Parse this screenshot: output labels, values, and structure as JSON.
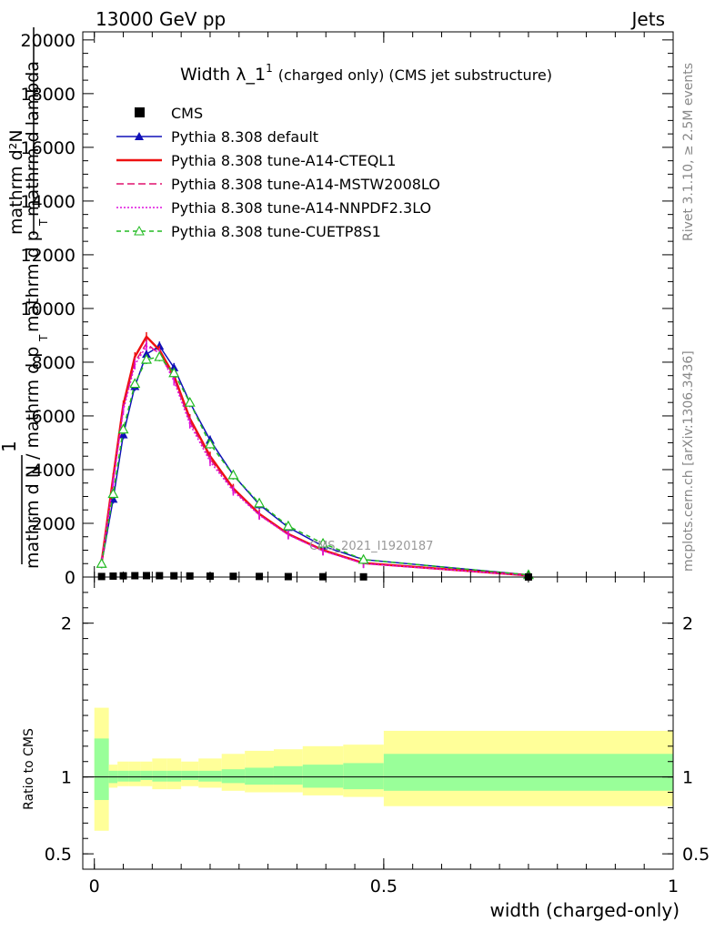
{
  "header": {
    "left": "13000 GeV pp",
    "right": "Jets"
  },
  "side_labels": {
    "rivet": "Rivet 3.1.10, ≥ 2.5M events",
    "mcplots": "mcplots.cern.ch [arXiv:1306.3436]"
  },
  "watermark": "CMS_2021_I1920187",
  "chart_data": {
    "type": "line",
    "title_main": "Width λ_1",
    "title_sup": "1",
    "title_rest": "(charged only) (CMS jet substructure)",
    "xlabel": "width (charged-only)",
    "ylabel_parts": [
      "mathrm d²N",
      "1",
      "mathrm d N / mathrm d p",
      "T",
      "mathrm d p",
      "T",
      "mathrm d lambda"
    ],
    "ratio_ylabel": "Ratio to CMS",
    "xlim": [
      -0.02,
      1.0
    ],
    "ylim": [
      0,
      20300
    ],
    "ratio_ylim": [
      0.4,
      2.3
    ],
    "x_ticks": [
      0,
      0.5,
      1
    ],
    "x_tick_labels": [
      "0",
      "0.5",
      "1"
    ],
    "y_ticks": [
      0,
      2000,
      4000,
      6000,
      8000,
      10000,
      12000,
      14000,
      16000,
      18000,
      20000
    ],
    "y_tick_labels": [
      "0",
      "2000",
      "4000",
      "6000",
      "8000",
      "10000",
      "12000",
      "14000",
      "16000",
      "18000",
      "20000"
    ],
    "ratio_ticks": [
      0.5,
      1,
      2
    ],
    "ratio_tick_labels": [
      "0.5",
      "1",
      "2"
    ],
    "legend_position": "top-left",
    "bins": [
      0,
      0.025,
      0.04,
      0.06,
      0.08,
      0.1,
      0.125,
      0.15,
      0.18,
      0.22,
      0.26,
      0.31,
      0.36,
      0.43,
      0.5,
      1.0
    ],
    "cms": {
      "name": "CMS",
      "x": [
        0.0125,
        0.0325,
        0.05,
        0.07,
        0.09,
        0.1125,
        0.1375,
        0.165,
        0.2,
        0.24,
        0.285,
        0.335,
        0.395,
        0.465,
        0.75
      ],
      "y": [
        20,
        35,
        45,
        50,
        52,
        50,
        46,
        40,
        33,
        27,
        22,
        16,
        11,
        7,
        2
      ]
    },
    "ratio_bands": {
      "inner_low": [
        0.85,
        0.96,
        0.97,
        0.97,
        0.98,
        0.97,
        0.97,
        0.98,
        0.97,
        0.96,
        0.95,
        0.95,
        0.93,
        0.92,
        0.91
      ],
      "inner_high": [
        1.25,
        1.04,
        1.04,
        1.04,
        1.04,
        1.04,
        1.04,
        1.04,
        1.04,
        1.05,
        1.06,
        1.07,
        1.08,
        1.09,
        1.15
      ],
      "outer_low": [
        0.65,
        0.93,
        0.94,
        0.94,
        0.94,
        0.92,
        0.92,
        0.94,
        0.93,
        0.91,
        0.9,
        0.9,
        0.88,
        0.87,
        0.81
      ],
      "outer_high": [
        1.45,
        1.08,
        1.1,
        1.1,
        1.1,
        1.12,
        1.12,
        1.1,
        1.12,
        1.15,
        1.17,
        1.18,
        1.2,
        1.21,
        1.3
      ]
    },
    "series": [
      {
        "name": "Pythia 8.308 default",
        "color": "#1010b8",
        "dash": "",
        "marker": "triangle-filled",
        "x": [
          0.0125,
          0.0325,
          0.05,
          0.07,
          0.09,
          0.1125,
          0.1375,
          0.165,
          0.2,
          0.24,
          0.285,
          0.335,
          0.395,
          0.465,
          0.75
        ],
        "y": [
          500,
          2900,
          5300,
          7100,
          8300,
          8600,
          7800,
          6500,
          5100,
          3800,
          2700,
          1850,
          1150,
          650,
          80
        ]
      },
      {
        "name": "Pythia 8.308 tune-A14-CTEQL1",
        "color": "#ee1111",
        "dash": "",
        "marker": "none",
        "x": [
          0.0125,
          0.0325,
          0.05,
          0.07,
          0.09,
          0.1125,
          0.1375,
          0.165,
          0.2,
          0.24,
          0.285,
          0.335,
          0.395,
          0.465,
          0.75
        ],
        "y": [
          550,
          3700,
          6400,
          8200,
          8950,
          8450,
          7500,
          5900,
          4500,
          3300,
          2350,
          1600,
          1000,
          520,
          60
        ]
      },
      {
        "name": "Pythia 8.308 tune-A14-MSTW2008LO",
        "color": "#e0106f",
        "dash": "8,4",
        "marker": "none",
        "x": [
          0.0125,
          0.0325,
          0.05,
          0.07,
          0.09,
          0.1125,
          0.1375,
          0.165,
          0.2,
          0.24,
          0.285,
          0.335,
          0.395,
          0.465,
          0.75
        ],
        "y": [
          560,
          3600,
          6300,
          8000,
          8700,
          8300,
          7400,
          5800,
          4400,
          3250,
          2320,
          1580,
          980,
          510,
          58
        ]
      },
      {
        "name": "Pythia 8.308 tune-A14-NNPDF2.3LO",
        "color": "#dd11dd",
        "dash": "2,2",
        "marker": "none",
        "x": [
          0.0125,
          0.0325,
          0.05,
          0.07,
          0.09,
          0.1125,
          0.1375,
          0.165,
          0.2,
          0.24,
          0.285,
          0.335,
          0.395,
          0.465,
          0.75
        ],
        "y": [
          540,
          3500,
          6200,
          7900,
          8600,
          8350,
          7300,
          5700,
          4300,
          3200,
          2300,
          1570,
          970,
          500,
          55
        ]
      },
      {
        "name": "Pythia 8.308 tune-CUETP8S1",
        "color": "#22bb22",
        "dash": "5,4",
        "marker": "triangle-open",
        "x": [
          0.0125,
          0.0325,
          0.05,
          0.07,
          0.09,
          0.1125,
          0.1375,
          0.165,
          0.2,
          0.24,
          0.285,
          0.335,
          0.395,
          0.465,
          0.75
        ],
        "y": [
          500,
          3100,
          5500,
          7200,
          8100,
          8200,
          7600,
          6500,
          4950,
          3800,
          2750,
          1900,
          1250,
          650,
          80
        ]
      }
    ]
  }
}
